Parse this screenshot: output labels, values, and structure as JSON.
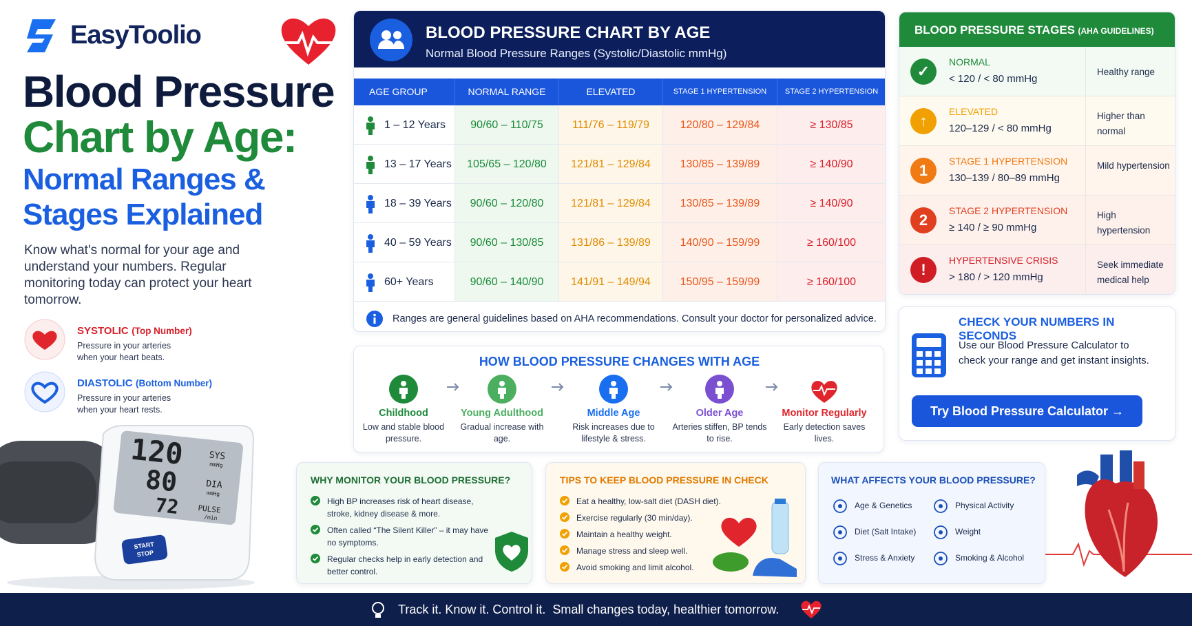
{
  "brand": "EasyToolio",
  "title": {
    "line1": "Blood Pressure",
    "line2": "Chart by Age:",
    "line3": "Normal Ranges &",
    "line4": "Stages Explained"
  },
  "intro": "Know what's normal for your age and understand your numbers. Regular monitoring today can protect your heart tomorrow.",
  "definitions": [
    {
      "term": "SYSTOLIC",
      "qualifier": "(Top Number)",
      "text": "Pressure in your arteries when your heart beats."
    },
    {
      "term": "DIASTOLIC",
      "qualifier": "(Bottom Number)",
      "text": "Pressure in your arteries when your heart rests."
    }
  ],
  "monitor": {
    "sys_value": "120",
    "dia_value": "80",
    "pulse_value": "72",
    "sys": "SYS",
    "sys_unit": "mmHg",
    "dia": "DIA",
    "dia_unit": "mmHg",
    "pulse": "PULSE",
    "pulse_unit": "/min",
    "button_line1": "START",
    "button_line2": "STOP"
  },
  "table": {
    "title": "BLOOD PRESSURE CHART BY AGE",
    "subtitle": "Normal Blood Pressure Ranges (Systolic/Diastolic mmHg)",
    "headers": [
      "AGE GROUP",
      "NORMAL RANGE",
      "ELEVATED",
      "STAGE 1 HYPERTENSION",
      "STAGE 2 HYPERTENSION"
    ],
    "rows": [
      [
        "1 – 12 Years",
        "90/60 – 110/75",
        "111/76 – 119/79",
        "120/80 – 129/84",
        "≥ 130/85"
      ],
      [
        "13 – 17 Years",
        "105/65 – 120/80",
        "121/81 – 129/84",
        "130/85 – 139/89",
        "≥ 140/90"
      ],
      [
        "18 – 39 Years",
        "90/60 – 120/80",
        "121/81 – 129/84",
        "130/85 – 139/89",
        "≥ 140/90"
      ],
      [
        "40 – 59 Years",
        "90/60 – 130/85",
        "131/86 – 139/89",
        "140/90 – 159/99",
        "≥ 160/100"
      ],
      [
        "60+ Years",
        "90/60 – 140/90",
        "141/91 – 149/94",
        "150/95 – 159/99",
        "≥ 160/100"
      ]
    ],
    "note": "Ranges are general guidelines based on AHA recommendations. Consult your doctor for personalized advice."
  },
  "changes": {
    "title": "HOW BLOOD PRESSURE CHANGES WITH AGE",
    "stages": [
      {
        "name": "Childhood",
        "desc": "Low and stable blood pressure."
      },
      {
        "name": "Young Adulthood",
        "desc": "Gradual increase with age."
      },
      {
        "name": "Middle Age",
        "desc": "Risk increases due to lifestyle & stress."
      },
      {
        "name": "Older Age",
        "desc": "Arteries stiffen, BP tends to rise."
      },
      {
        "name": "Monitor Regularly",
        "desc": "Early detection saves lives."
      }
    ]
  },
  "stages": {
    "title": "BLOOD PRESSURE STAGES",
    "title_note": "(AHA GUIDELINES)",
    "items": [
      {
        "badge": "✓",
        "name": "NORMAL",
        "reading": "< 120 / < 80 mmHg",
        "meaning": "Healthy range"
      },
      {
        "badge": "↑",
        "name": "ELEVATED",
        "reading": "120–129 / < 80 mmHg",
        "meaning": "Higher than normal"
      },
      {
        "badge": "1",
        "name": "STAGE 1 HYPERTENSION",
        "reading": "130–139 / 80–89 mmHg",
        "meaning": "Mild hypertension"
      },
      {
        "badge": "2",
        "name": "STAGE 2 HYPERTENSION",
        "reading": "≥ 140 / ≥ 90 mmHg",
        "meaning": "High hypertension"
      },
      {
        "badge": "!",
        "name": "HYPERTENSIVE CRISIS",
        "reading": "> 180 / > 120 mmHg",
        "meaning": "Seek immediate medical help"
      }
    ]
  },
  "check": {
    "title": "CHECK YOUR NUMBERS IN SECONDS",
    "text": "Use our Blood Pressure Calculator to check your range and get instant insights.",
    "button": "Try Blood Pressure Calculator →"
  },
  "why": {
    "title": "WHY MONITOR YOUR BLOOD PRESSURE?",
    "items": [
      "High BP increases risk of heart disease, stroke, kidney disease & more.",
      "Often called “The Silent Killer” – it may have no symptoms.",
      "Regular checks help in early detection and better control."
    ]
  },
  "tips": {
    "title": "TIPS TO KEEP BLOOD PRESSURE IN CHECK",
    "items": [
      "Eat a healthy, low-salt diet (DASH diet).",
      "Exercise regularly (30 min/day).",
      "Maintain a healthy weight.",
      "Manage stress and sleep well.",
      "Avoid smoking and limit alcohol."
    ]
  },
  "affects": {
    "title": "WHAT AFFECTS YOUR BLOOD PRESSURE?",
    "items": [
      "Age & Genetics",
      "Physical Activity",
      "Diet (Salt Intake)",
      "Weight",
      "Stress & Anxiety",
      "Smoking & Alcohol"
    ]
  },
  "footer": "Track it. Know it. Control it.  Small changes today, healthier tomorrow."
}
